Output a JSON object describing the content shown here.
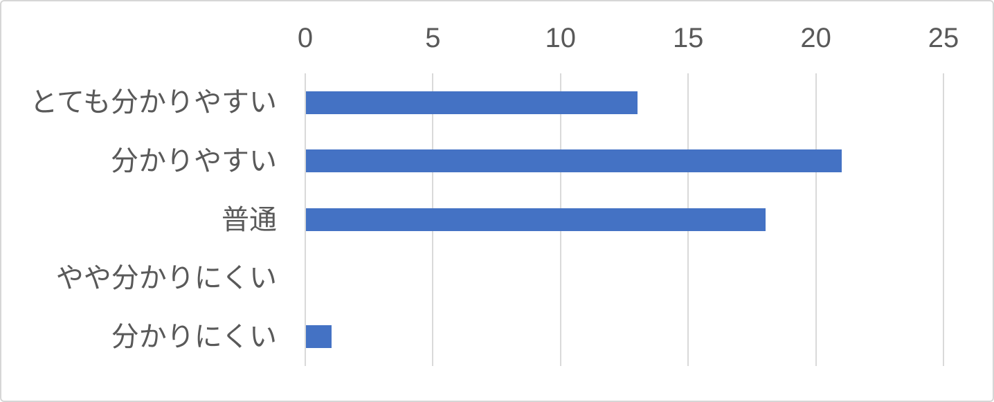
{
  "chart_data": {
    "type": "bar",
    "orientation": "horizontal",
    "title": "",
    "xlabel": "",
    "ylabel": "",
    "categories": [
      "とても分かりやすい",
      "分かりやすい",
      "普通",
      "やや分かりにくい",
      "分かりにくい"
    ],
    "values": [
      13,
      21,
      18,
      0,
      1
    ],
    "x_ticks": [
      "0",
      "5",
      "10",
      "15",
      "20",
      "25"
    ],
    "x_tick_values": [
      0,
      5,
      10,
      15,
      20,
      25
    ],
    "xlim": [
      0,
      25
    ],
    "grid": "vertical-gridlines-on",
    "legend": "none",
    "colors": {
      "bar": "#4472c4",
      "gridline": "#d9d9d9",
      "text": "#595959",
      "frame_border": "#d6d6d6",
      "background": "#ffffff"
    }
  }
}
